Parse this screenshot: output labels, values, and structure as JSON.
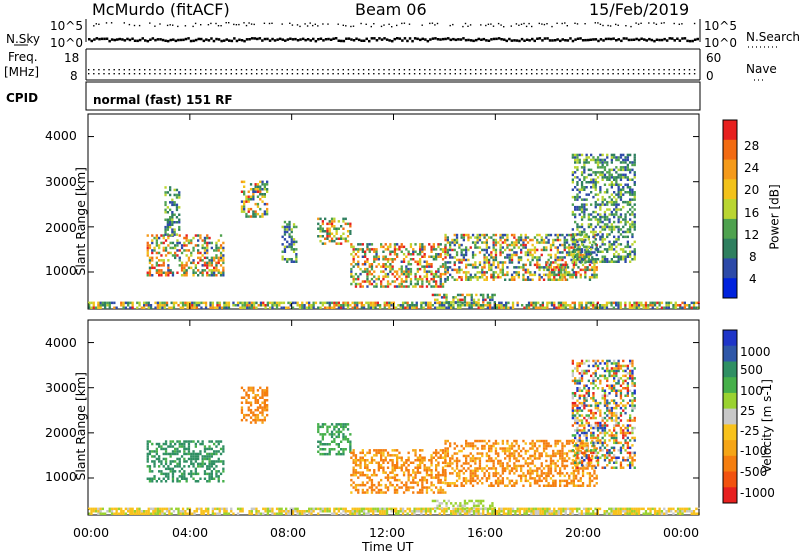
{
  "header": {
    "station": "McMurdo (fitACF)",
    "beam": "Beam 06",
    "date": "15/Feb/2019"
  },
  "strip_panels": {
    "nsky": {
      "label": "N.Sky",
      "ticks": [
        "10^5",
        "10^0"
      ],
      "right_ticks": [
        "10^5",
        "10^0"
      ],
      "right_label": "N.Search"
    },
    "freq": {
      "label_lines": [
        "Freq.",
        "[MHz]"
      ],
      "left_ticks": [
        "18",
        "8"
      ],
      "right_ticks": [
        "60",
        "0"
      ],
      "right_label": "Nave"
    },
    "cpid": {
      "label": "CPID",
      "text": "normal (fast) 151 RF"
    }
  },
  "time_axis": {
    "ticks": [
      "00:00",
      "04:00",
      "08:00",
      "12:00",
      "16:00",
      "20:00",
      "00:00"
    ],
    "title": "Time UT"
  },
  "colors": {
    "power_scale": [
      "#0022dd",
      "#2d4aa8",
      "#2f7f5f",
      "#4fa24f",
      "#b9d531",
      "#f2c21a",
      "#f59a1a",
      "#f26b12",
      "#e7201f"
    ],
    "velocity_scale": [
      "#e7201f",
      "#f2520f",
      "#f57e0f",
      "#f5a516",
      "#f8c21c",
      "#c8c8c8",
      "#9ad230",
      "#46b04a",
      "#2f8f63",
      "#2f57a8",
      "#1f35c8"
    ]
  },
  "chart_data": [
    {
      "type": "heatmap",
      "title": "",
      "xlabel": "",
      "ylabel": "Slant Range [km]",
      "xlim_hours": [
        0,
        24
      ],
      "ylim": [
        180,
        4500
      ],
      "yticks": [
        "1000",
        "2000",
        "3000",
        "4000"
      ],
      "colorbar": {
        "label": "Power [dB]",
        "ticks": [
          "4",
          "8",
          "12",
          "16",
          "20",
          "24",
          "28"
        ],
        "range": [
          0,
          30
        ]
      },
      "echo_regions": [
        {
          "t": [
            0.0,
            24.0
          ],
          "r": [
            180,
            320
          ],
          "level": "mixed-low"
        },
        {
          "t": [
            2.3,
            5.3
          ],
          "r": [
            900,
            1800
          ],
          "level": "high-core"
        },
        {
          "t": [
            3.0,
            3.6
          ],
          "r": [
            1800,
            2900
          ],
          "level": "low"
        },
        {
          "t": [
            6.0,
            7.0
          ],
          "r": [
            2200,
            3000
          ],
          "level": "mixed"
        },
        {
          "t": [
            7.6,
            8.2
          ],
          "r": [
            1200,
            2100
          ],
          "level": "low"
        },
        {
          "t": [
            9.0,
            10.3
          ],
          "r": [
            1600,
            2200
          ],
          "level": "high"
        },
        {
          "t": [
            10.3,
            14.0
          ],
          "r": [
            650,
            1600
          ],
          "level": "high-core"
        },
        {
          "t": [
            13.5,
            16.0
          ],
          "r": [
            300,
            500
          ],
          "level": "mixed"
        },
        {
          "t": [
            14.0,
            20.0
          ],
          "r": [
            800,
            1800
          ],
          "level": "mixed"
        },
        {
          "t": [
            18.0,
            19.0
          ],
          "r": [
            800,
            1200
          ],
          "level": "high"
        },
        {
          "t": [
            19.0,
            21.5
          ],
          "r": [
            1200,
            3600
          ],
          "level": "low-mixed"
        }
      ]
    },
    {
      "type": "heatmap",
      "title": "",
      "xlabel": "Time UT",
      "ylabel": "Slant Range [km]",
      "xlim_hours": [
        0,
        24
      ],
      "ylim": [
        180,
        4500
      ],
      "yticks": [
        "1000",
        "2000",
        "3000",
        "4000"
      ],
      "colorbar": {
        "label": "Velocity [m s-1]",
        "ticks": [
          "1000",
          "500",
          "100",
          "25",
          "-25",
          "-100",
          "-500",
          "-1000"
        ],
        "range": [
          -1000,
          1000
        ]
      },
      "echo_regions": [
        {
          "t": [
            0.0,
            24.0
          ],
          "r": [
            180,
            320
          ],
          "velocity": "0 to -100"
        },
        {
          "t": [
            2.3,
            5.3
          ],
          "r": [
            900,
            1800
          ],
          "velocity": "+100 to +500"
        },
        {
          "t": [
            6.0,
            7.0
          ],
          "r": [
            2200,
            3000
          ],
          "velocity": "-100"
        },
        {
          "t": [
            9.0,
            10.3
          ],
          "r": [
            1500,
            2200
          ],
          "velocity": "+100"
        },
        {
          "t": [
            10.3,
            14.0
          ],
          "r": [
            650,
            1600
          ],
          "velocity": "-100 to -500"
        },
        {
          "t": [
            13.5,
            16.0
          ],
          "r": [
            300,
            500
          ],
          "velocity": "+25 to +100"
        },
        {
          "t": [
            14.0,
            20.0
          ],
          "r": [
            800,
            1800
          ],
          "velocity": "-100 to -500"
        },
        {
          "t": [
            19.0,
            21.5
          ],
          "r": [
            1200,
            3600
          ],
          "velocity": "mixed"
        }
      ]
    }
  ]
}
